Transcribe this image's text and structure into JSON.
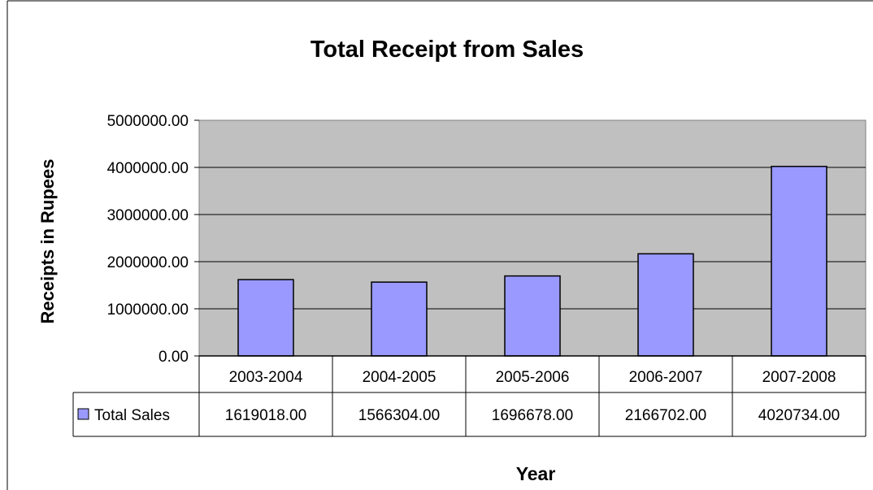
{
  "chart_data": {
    "type": "bar",
    "title": "Total Receipt from Sales",
    "xlabel": "Year",
    "ylabel": "Receipts in Rupees",
    "categories": [
      "2003-2004",
      "2004-2005",
      "2005-2006",
      "2006-2007",
      "2007-2008"
    ],
    "series": [
      {
        "name": "Total Sales",
        "values": [
          1619018.0,
          1566304.0,
          1696678.0,
          2166702.0,
          4020734.0
        ]
      }
    ],
    "table_values": [
      "1619018.00",
      "1566304.00",
      "1696678.00",
      "2166702.00",
      "4020734.00"
    ],
    "y_ticks": [
      "0.00",
      "1000000.00",
      "2000000.00",
      "3000000.00",
      "4000000.00",
      "5000000.00"
    ],
    "ylim": [
      0,
      5000000
    ],
    "grid": true,
    "legend": "data-table-left",
    "colors": {
      "plot_bg": "#c0c0c0",
      "bar_fill": "#9999ff",
      "bar_stroke": "#000000",
      "grid": "#000000"
    }
  }
}
